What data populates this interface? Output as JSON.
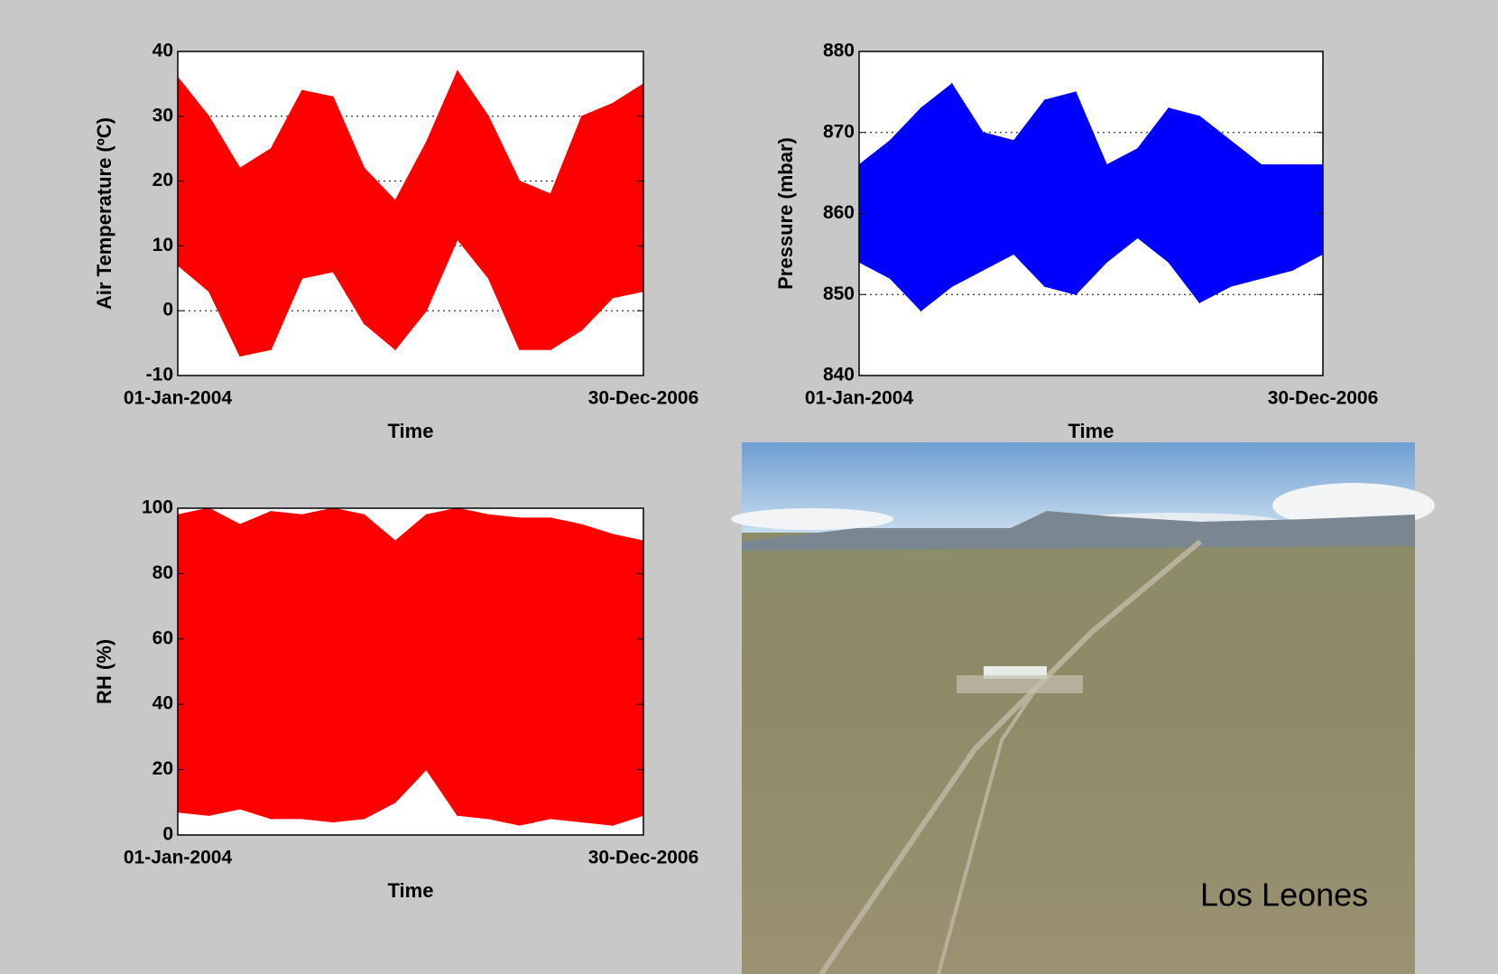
{
  "chart_data": [
    {
      "type": "range",
      "ylabel": "Air Temperature (ºC)",
      "xlabel": "Time",
      "x": [
        0,
        73,
        146,
        219,
        292,
        365,
        438,
        511,
        584,
        657,
        730,
        803,
        876,
        949,
        1022,
        1094
      ],
      "xlim": [
        0,
        1094
      ],
      "xticks": [
        {
          "value": 0,
          "label": "01-Jan-2004"
        },
        {
          "value": 1094,
          "label": "30-Dec-2006"
        }
      ],
      "ylim": [
        -10,
        40
      ],
      "yticks": [
        -10,
        0,
        10,
        20,
        30,
        40
      ],
      "grid": true,
      "series": [
        {
          "color": "#ff0000",
          "values": [
            36,
            30,
            22,
            25,
            34,
            33,
            22,
            17,
            26,
            37,
            30,
            20,
            18,
            30,
            32,
            35
          ]
        },
        {
          "color": "#ff0000",
          "values": [
            7,
            3,
            -7,
            -6,
            5,
            6,
            -2,
            -6,
            0,
            11,
            5,
            -6,
            -6,
            -3,
            2,
            3
          ]
        }
      ]
    },
    {
      "type": "range",
      "ylabel": "Pressure (mbar)",
      "xlabel": "Time",
      "x": [
        0,
        73,
        146,
        219,
        292,
        365,
        438,
        511,
        584,
        657,
        730,
        803,
        876,
        949,
        1022,
        1094
      ],
      "xlim": [
        0,
        1094
      ],
      "xticks": [
        {
          "value": 0,
          "label": "01-Jan-2004"
        },
        {
          "value": 1094,
          "label": "30-Dec-2006"
        }
      ],
      "ylim": [
        840,
        880
      ],
      "yticks": [
        840,
        850,
        860,
        870,
        880
      ],
      "grid": true,
      "series": [
        {
          "color": "#0000ff",
          "values": [
            866,
            869,
            873,
            876,
            870,
            869,
            874,
            875,
            866,
            868,
            873,
            872,
            869,
            866,
            866,
            866
          ]
        },
        {
          "color": "#0000ff",
          "values": [
            854,
            852,
            848,
            851,
            853,
            855,
            851,
            850,
            854,
            857,
            854,
            849,
            851,
            852,
            853,
            855
          ]
        }
      ]
    },
    {
      "type": "range",
      "ylabel": "RH (%)",
      "xlabel": "Time",
      "x": [
        0,
        73,
        146,
        219,
        292,
        365,
        438,
        511,
        584,
        657,
        730,
        803,
        876,
        949,
        1022,
        1094
      ],
      "xlim": [
        0,
        1094
      ],
      "xticks": [
        {
          "value": 0,
          "label": "01-Jan-2004"
        },
        {
          "value": 1094,
          "label": "30-Dec-2006"
        }
      ],
      "ylim": [
        0,
        100
      ],
      "yticks": [
        0,
        20,
        40,
        60,
        80,
        100
      ],
      "grid": true,
      "series": [
        {
          "color": "#ff0000",
          "values": [
            98,
            100,
            95,
            99,
            98,
            100,
            98,
            90,
            98,
            100,
            98,
            97,
            97,
            95,
            92,
            90
          ]
        },
        {
          "color": "#ff0000",
          "values": [
            7,
            6,
            8,
            5,
            5,
            4,
            5,
            10,
            20,
            6,
            5,
            3,
            5,
            4,
            3,
            6
          ]
        }
      ]
    }
  ],
  "photo_caption": "Los Leones"
}
